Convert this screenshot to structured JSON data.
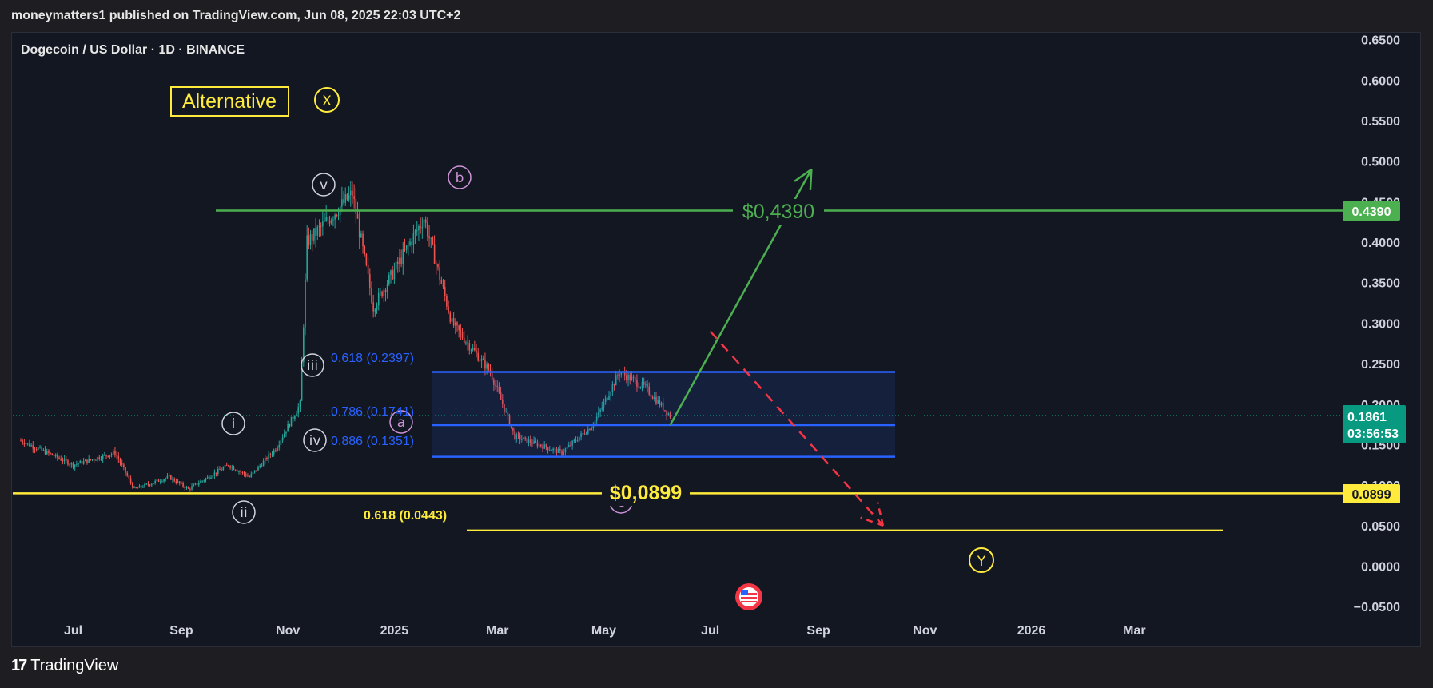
{
  "header": "moneymatters1 published on TradingView.com, Jun 08, 2025 22:03 UTC+2",
  "symbol": "Dogecoin / US Dollar · 1D · BINANCE",
  "footer": {
    "logo": "17",
    "brand": "TradingView"
  },
  "annotations": {
    "alternative": "Alternative",
    "wave_labels": [
      "X",
      "v",
      "b",
      "iii",
      "i",
      "a",
      "iv",
      "ii",
      "c",
      "Y"
    ],
    "green_level_text": "$0,4390",
    "yellow_level_text": "$0,0899",
    "fib_0618": "0.618 (0.2397)",
    "fib_0786": "0.786 (0.1741)",
    "fib_0886": "0.886 (0.1351)",
    "fib_yellow": "0.618 (0.0443)"
  },
  "price_badges": {
    "green": "0.4390",
    "current_price": "0.1861",
    "countdown": "03:56:53",
    "yellow": "0.0899"
  },
  "colors": {
    "up": "#26a69a",
    "down": "#ef5350",
    "green_line": "#4caf50",
    "yellow_line": "#ffeb3b",
    "fib_blue": "#2962ff",
    "projection_red": "#f23645",
    "wave_purple": "#ce93d8"
  },
  "chart_data": {
    "type": "candlestick",
    "title": "Dogecoin / US Dollar · 1D · BINANCE",
    "y_ticks": [
      "0.6500",
      "0.6000",
      "0.5500",
      "0.5000",
      "0.4500",
      "0.4000",
      "0.3500",
      "0.3000",
      "0.2500",
      "0.2000",
      "0.1500",
      "0.1000",
      "0.0500",
      "0.0000",
      "−0.0500"
    ],
    "x_ticks": [
      "Jul",
      "Sep",
      "Nov",
      "2025",
      "Mar",
      "May",
      "Jul",
      "Sep",
      "Nov",
      "2026",
      "Mar"
    ],
    "ylim": [
      -0.06,
      0.66
    ],
    "price_path": [
      {
        "date": "2024-06-01",
        "price": 0.155
      },
      {
        "date": "2024-07-01",
        "price": 0.125
      },
      {
        "date": "2024-07-25",
        "price": 0.14
      },
      {
        "date": "2024-08-05",
        "price": 0.095
      },
      {
        "date": "2024-08-25",
        "price": 0.11
      },
      {
        "date": "2024-09-05",
        "price": 0.095
      },
      {
        "date": "2024-09-28",
        "price": 0.125
      },
      {
        "date": "2024-10-10",
        "price": 0.11
      },
      {
        "date": "2024-10-25",
        "price": 0.145
      },
      {
        "date": "2024-11-08",
        "price": 0.2
      },
      {
        "date": "2024-11-12",
        "price": 0.4
      },
      {
        "date": "2024-11-25",
        "price": 0.43
      },
      {
        "date": "2024-12-08",
        "price": 0.46
      },
      {
        "date": "2024-12-20",
        "price": 0.32
      },
      {
        "date": "2025-01-05",
        "price": 0.38
      },
      {
        "date": "2025-01-18",
        "price": 0.43
      },
      {
        "date": "2025-02-03",
        "price": 0.3
      },
      {
        "date": "2025-02-25",
        "price": 0.24
      },
      {
        "date": "2025-03-11",
        "price": 0.16
      },
      {
        "date": "2025-04-07",
        "price": 0.14
      },
      {
        "date": "2025-04-25",
        "price": 0.175
      },
      {
        "date": "2025-05-10",
        "price": 0.24
      },
      {
        "date": "2025-05-25",
        "price": 0.22
      },
      {
        "date": "2025-06-08",
        "price": 0.1861
      }
    ],
    "levels": [
      {
        "label": "$0,4390",
        "price": 0.439
      },
      {
        "label": "$0,0899",
        "price": 0.0899
      },
      {
        "label": "0.618 (0.2397)",
        "price": 0.2397
      },
      {
        "label": "0.786 (0.1741)",
        "price": 0.1741
      },
      {
        "label": "0.886 (0.1351)",
        "price": 0.1351
      },
      {
        "label": "0.618 (0.0443)",
        "price": 0.0443
      }
    ],
    "projection_up": {
      "from": {
        "date": "2025-06-08",
        "price": 0.1741
      },
      "to": {
        "date": "2025-08-28",
        "price": 0.49
      }
    },
    "projection_down": {
      "from": {
        "date": "2025-07-01",
        "price": 0.29
      },
      "to": {
        "date": "2025-10-08",
        "price": 0.05
      }
    },
    "current_price": 0.1861
  }
}
